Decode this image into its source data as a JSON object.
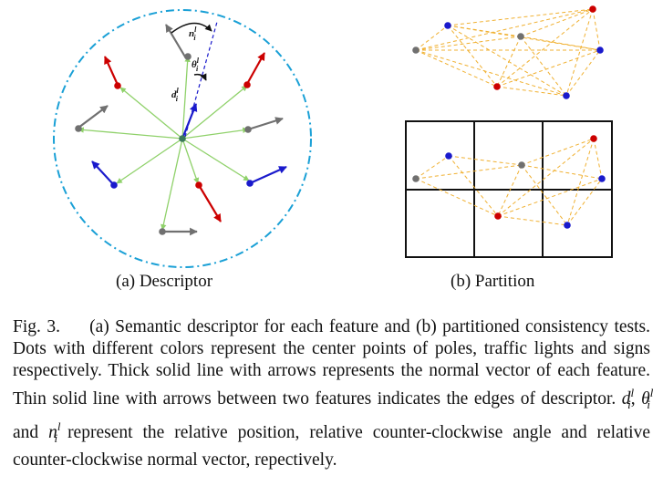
{
  "subfigures": {
    "a_caption": "(a)  Descriptor",
    "b_caption": "(b)  Partition"
  },
  "diagram_labels": {
    "normal_label": "n",
    "angle_label": "θ",
    "distance_label": "d",
    "superscript": "l",
    "subscript": "i"
  },
  "colors": {
    "pole": "#cc0000",
    "traffic_light": "#1a1acc",
    "sign": "#707070",
    "center": "#3a7a5a",
    "edge_thin": "#8fd16a",
    "dashed_circle": "#1aa0d6",
    "partition_edge": "#f0b030",
    "grid": "#111111"
  },
  "caption": {
    "label": "Fig. 3.",
    "part1": "(a) Semantic descriptor for each feature and (b) partitioned consistency tests. Dots with different colors represent the center points of poles, traffic lights and signs respectively. Thick solid line with arrows represents the normal vector of each feature. Thin solid line with arrows between two features indicates the edges of descriptor.",
    "sym_d": "d",
    "sym_theta": "θ",
    "sym_and": "and",
    "sym_n": "n",
    "sup": "l",
    "sub": "i",
    "part2": "represent the relative position, relative counter-clockwise angle and relative counter-clockwise normal vector, repectively."
  }
}
